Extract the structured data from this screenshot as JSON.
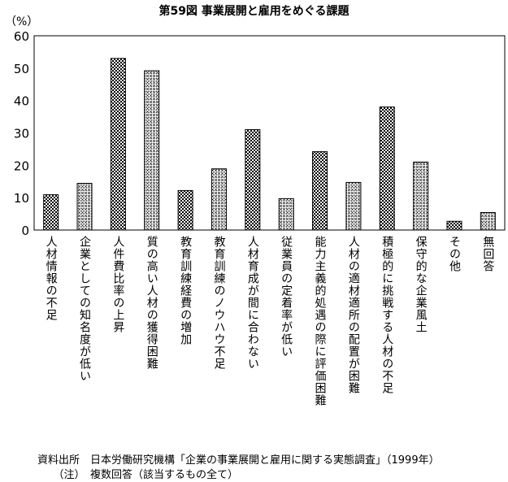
{
  "chart_data": {
    "type": "bar",
    "title": "第59図 事業展開と雇用をめぐる課題",
    "ylabel": "（%）",
    "xlabel": "",
    "ylim": [
      0,
      60
    ],
    "yticks": [
      0,
      10,
      20,
      30,
      40,
      50,
      60
    ],
    "categories": [
      "人材情報の不足",
      "企業としての知名度が低い",
      "人件費比率の上昇",
      "質の高い人材の獲得困難",
      "教育訓練経費の増加",
      "教育訓練のノウハウ不足",
      "人材育成が間に合わない",
      "従業員の定着率が低い",
      "能力主義的処遇の際に評価困難",
      "人材の適材適所の配置が困難",
      "積極的に挑戦する人材の不足",
      "保守的な企業風土",
      "その他",
      "無回答"
    ],
    "values": [
      10.9,
      14.4,
      53.0,
      49.2,
      12.2,
      18.9,
      31.0,
      9.7,
      24.2,
      14.7,
      38.0,
      21.0,
      2.7,
      5.4
    ],
    "grid": false,
    "legend": "none"
  },
  "notes": {
    "source": "資料出所　日本労働研究機構「企業の事業展開と雇用に関する実態調査」（1999年）",
    "note": "　　（注）　複数回答（該当するもの全て）"
  }
}
